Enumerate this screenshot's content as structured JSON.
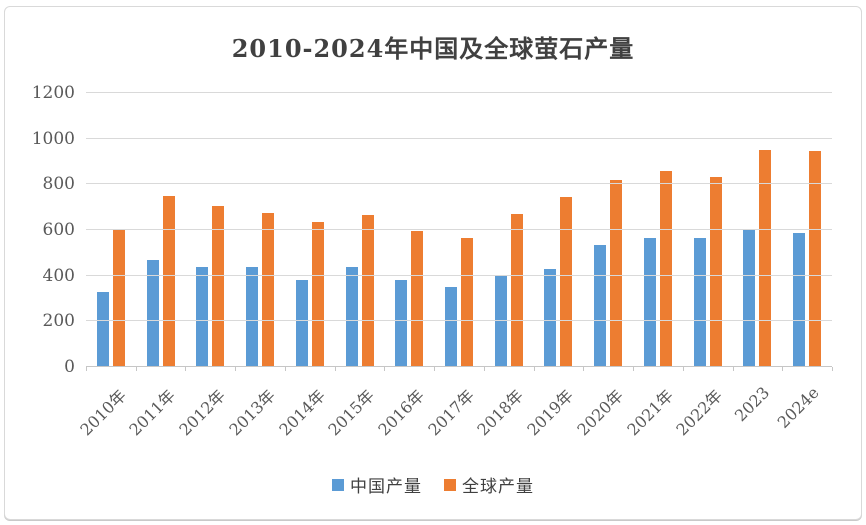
{
  "theme": {
    "title": "#404040",
    "text": "#595959",
    "grid": "#d9d9d9",
    "axis": "#c6c6c6",
    "border": "#d9d9d9",
    "background": "#ffffff"
  },
  "chart_data": {
    "type": "bar",
    "title": "2010-2024年中国及全球萤石产量",
    "categories": [
      "2010年",
      "2011年",
      "2012年",
      "2013年",
      "2014年",
      "2015年",
      "2016年",
      "2017年",
      "2018年",
      "2019年",
      "2020年",
      "2021年",
      "2022年",
      "2023",
      "2024e"
    ],
    "series": [
      {
        "name": "中国产量",
        "color": "#5B9BD5",
        "values": [
          330,
          470,
          440,
          440,
          380,
          440,
          380,
          350,
          400,
          430,
          535,
          565,
          565,
          600,
          585
        ]
      },
      {
        "name": "全球产量",
        "color": "#ED7D31",
        "values": [
          605,
          750,
          705,
          675,
          635,
          665,
          595,
          565,
          670,
          745,
          820,
          860,
          830,
          950,
          945
        ]
      }
    ],
    "xlabel": "",
    "ylabel": "",
    "ylim": [
      0,
      1200
    ],
    "ytick_step": 200,
    "ytick_labels": [
      "0",
      "200",
      "400",
      "600",
      "800",
      "1000",
      "1200"
    ],
    "grid": true,
    "legend_position": "bottom",
    "x_label_rotation_deg": 45
  }
}
